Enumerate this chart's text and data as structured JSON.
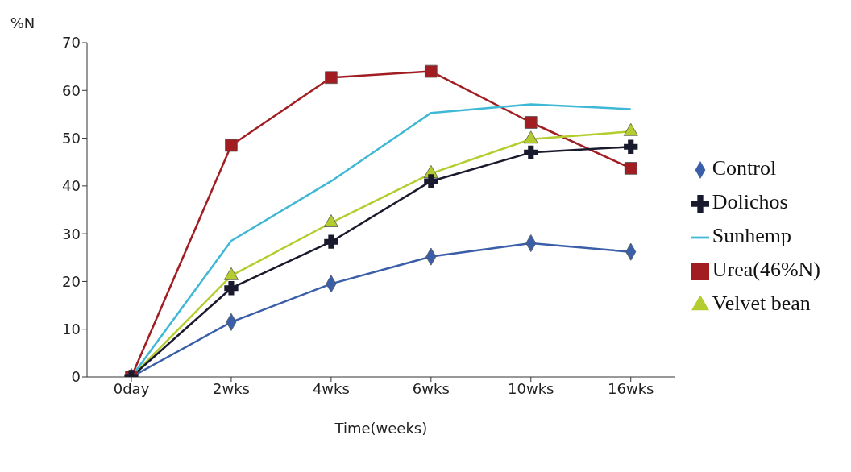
{
  "chart_data": {
    "type": "line",
    "ylabel": "%N",
    "xlabel": "Time(weeks)",
    "categories": [
      "0day",
      "2wks",
      "4wks",
      "6wks",
      "10wks",
      "16wks"
    ],
    "ylim": [
      0,
      70
    ],
    "yticks": [
      0,
      10,
      20,
      30,
      40,
      50,
      60,
      70
    ],
    "grid": false,
    "legend": "right",
    "series": [
      {
        "name": "Control",
        "color": "#3a5fa8",
        "marker": "diamond",
        "values": [
          0,
          11.5,
          19.5,
          25.2,
          28,
          26.2
        ]
      },
      {
        "name": "Urea(46%N)",
        "color": "#a11d21",
        "marker": "square",
        "values": [
          0,
          48.5,
          62.7,
          64,
          53.3,
          43.7
        ]
      },
      {
        "name": "Velvet bean",
        "color": "#b5cc2e",
        "marker": "triangle",
        "values": [
          0,
          21.2,
          32.3,
          42.6,
          49.8,
          51.4
        ]
      },
      {
        "name": "Dolichos",
        "color": "#1a1a2e",
        "marker": "cross",
        "values": [
          0,
          18.6,
          28.3,
          41,
          47,
          48.2
        ]
      },
      {
        "name": "Sunhemp",
        "color": "#3fb8d6",
        "marker": "none",
        "values": [
          0,
          28.5,
          41,
          55.3,
          57.1,
          56.1
        ]
      }
    ]
  }
}
